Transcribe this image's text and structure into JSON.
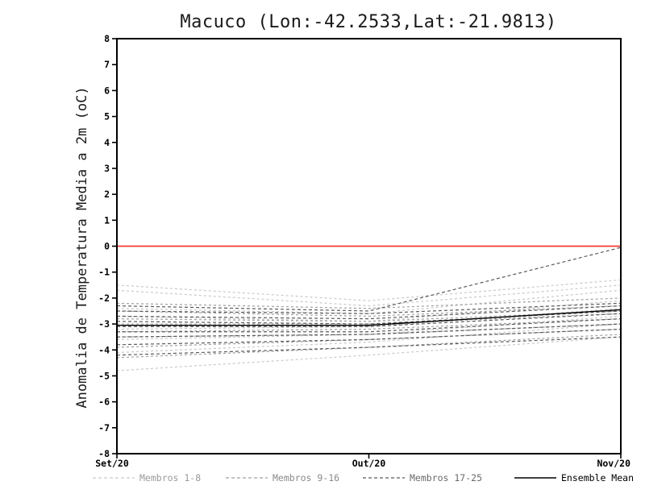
{
  "title": "Macuco (Lon:-42.2533,Lat:-21.9813)",
  "ylabel": "Anomalia de Temperatura Media a 2m (oC)",
  "colors": {
    "axis": "#000000",
    "zero_line": "#f03b2f",
    "background": "#ffffff"
  },
  "chart_data": {
    "type": "line",
    "x_categories": [
      "Set/20",
      "Out/20",
      "Nov/20"
    ],
    "ylim": [
      -8,
      8
    ],
    "ytick_step": 1,
    "grid": false,
    "legend_position": "bottom",
    "zero_line": {
      "y": 0,
      "color": "#f03b2f"
    },
    "groups": [
      {
        "label": "Membros 1-8",
        "color": "#c9c9c9",
        "dash": "3 3",
        "members": [
          [
            -1.5,
            -2.1,
            -1.3
          ],
          [
            -1.7,
            -2.3,
            -1.5
          ],
          [
            -2.4,
            -2.6,
            -1.7
          ],
          [
            -2.7,
            -2.9,
            -2.1
          ],
          [
            -3.2,
            -3.1,
            -2.4
          ],
          [
            -3.6,
            -3.4,
            -2.7
          ],
          [
            -4.1,
            -3.7,
            -3.0
          ],
          [
            -4.8,
            -4.2,
            -3.5
          ]
        ]
      },
      {
        "label": "Membros 9-16",
        "color": "#9f9f9f",
        "dash": "3 3",
        "members": [
          [
            -2.2,
            -2.4,
            -2.0
          ],
          [
            -2.5,
            -2.7,
            -2.3
          ],
          [
            -2.8,
            -2.9,
            -2.5
          ],
          [
            -3.0,
            -3.0,
            -2.6
          ],
          [
            -3.3,
            -3.2,
            -2.8
          ],
          [
            -3.5,
            -3.4,
            -3.0
          ],
          [
            -3.9,
            -3.6,
            -3.2
          ],
          [
            -4.3,
            -3.9,
            -3.4
          ]
        ]
      },
      {
        "label": "Membros 17-25",
        "color": "#5a5a5a",
        "dash": "4 3",
        "members": [
          [
            -2.3,
            -2.5,
            -0.05
          ],
          [
            -2.5,
            -2.6,
            -2.2
          ],
          [
            -2.7,
            -2.8,
            -2.3
          ],
          [
            -2.9,
            -3.0,
            -2.5
          ],
          [
            -3.1,
            -3.1,
            -2.6
          ],
          [
            -3.3,
            -3.3,
            -2.8
          ],
          [
            -3.5,
            -3.4,
            -3.0
          ],
          [
            -3.8,
            -3.6,
            -3.2
          ],
          [
            -4.2,
            -3.9,
            -3.5
          ]
        ]
      }
    ],
    "mean": {
      "label": "Ensemble Mean",
      "color": "#000000",
      "values": [
        -3.05,
        -3.05,
        -2.45
      ]
    },
    "legend": [
      {
        "label": "Membros 1-8",
        "color": "#c9c9c9",
        "label_color": "#9a9a9a",
        "style": "dashed"
      },
      {
        "label": "Membros 9-16",
        "color": "#9f9f9f",
        "label_color": "#8a8a8a",
        "style": "dashed"
      },
      {
        "label": "Membros 17-25",
        "color": "#5a5a5a",
        "label_color": "#6a6a6a",
        "style": "dashed"
      },
      {
        "label": "Ensemble Mean",
        "color": "#000000",
        "label_color": "#000000",
        "style": "solid"
      }
    ]
  }
}
